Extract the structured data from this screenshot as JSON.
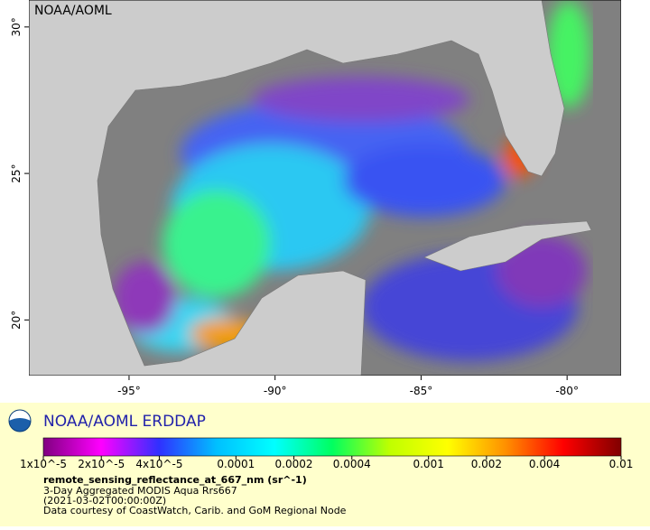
{
  "header": {
    "label": "NOAA/AOML"
  },
  "chart_data": {
    "type": "map",
    "xlim": [
      -98.43,
      -78.15
    ],
    "ylim": [
      18.1,
      30.92
    ],
    "xticks": [
      {
        "value": -95,
        "label": "-95°"
      },
      {
        "value": -90,
        "label": "-90°"
      },
      {
        "value": -85,
        "label": "-85°"
      },
      {
        "value": -80,
        "label": "-80°"
      }
    ],
    "yticks": [
      {
        "value": 20,
        "label": "20°"
      },
      {
        "value": 25,
        "label": "25°"
      },
      {
        "value": 30,
        "label": "30°"
      }
    ],
    "colorbar": {
      "title": "NOAA/AOML ERDDAP",
      "scale": "log",
      "lim": [
        1e-05,
        0.01
      ],
      "ticks": [
        {
          "value": 1e-05,
          "label": "1x10^-5"
        },
        {
          "value": 2e-05,
          "label": "2x10^-5"
        },
        {
          "value": 4e-05,
          "label": "4x10^-5"
        },
        0.0001,
        0.0002,
        0.0004,
        0.001,
        0.002,
        0.004,
        0.01
      ],
      "colors": [
        "#800080",
        "#ff00ff",
        "#3030ff",
        "#00c0ff",
        "#00ffff",
        "#00ff60",
        "#c0ff00",
        "#ffff00",
        "#ff9000",
        "#ff0000",
        "#800000"
      ]
    },
    "variable": "remote_sensing_reflectance_at_667_nm (sr^-1)",
    "notes": [
      "3-Day Aggregated MODIS Aqua Rrs667",
      "(2021-03-02T00:00:00Z)",
      "Data courtesy of CoastWatch, Carib. and GoM Regional Node"
    ]
  }
}
